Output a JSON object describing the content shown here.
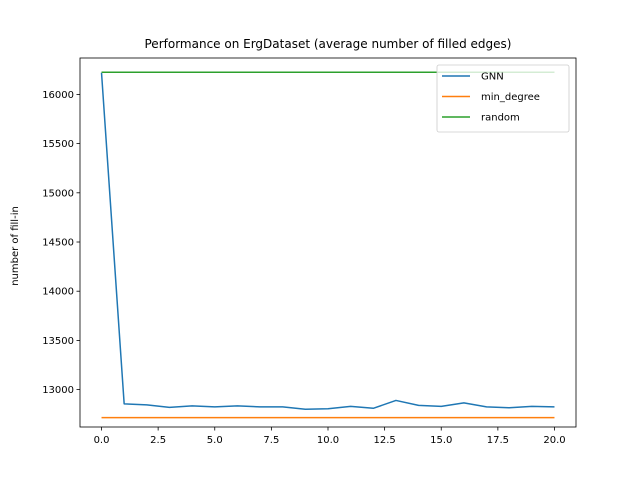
{
  "chart_data": {
    "type": "line",
    "title": "Performance on ErgDataset (average number of filled edges)",
    "xlabel": "",
    "ylabel": "number of fill-in",
    "x": [
      0,
      1,
      2,
      3,
      4,
      5,
      6,
      7,
      8,
      9,
      10,
      11,
      12,
      13,
      14,
      15,
      16,
      17,
      18,
      19,
      20
    ],
    "xlim": [
      -0.95,
      20.95
    ],
    "ylim": [
      12620,
      16370
    ],
    "xticks": [
      "0.0",
      "2.5",
      "5.0",
      "7.5",
      "10.0",
      "12.5",
      "15.0",
      "17.5",
      "20.0"
    ],
    "yticks": [
      "13000",
      "13500",
      "14000",
      "14500",
      "15000",
      "15500",
      "16000"
    ],
    "grid": false,
    "legend_position": "top-right",
    "series": [
      {
        "name": "GNN",
        "color": "#1f77b4",
        "values": [
          16220,
          12855,
          12845,
          12820,
          12835,
          12825,
          12835,
          12825,
          12825,
          12800,
          12805,
          12830,
          12810,
          12890,
          12840,
          12830,
          12865,
          12825,
          12815,
          12830,
          12825
        ]
      },
      {
        "name": "min_degree",
        "color": "#ff7f0e",
        "values": [
          12715,
          12715,
          12715,
          12715,
          12715,
          12715,
          12715,
          12715,
          12715,
          12715,
          12715,
          12715,
          12715,
          12715,
          12715,
          12715,
          12715,
          12715,
          12715,
          12715,
          12715
        ]
      },
      {
        "name": "random",
        "color": "#2ca02c",
        "values": [
          16225,
          16225,
          16225,
          16225,
          16225,
          16225,
          16225,
          16225,
          16225,
          16225,
          16225,
          16225,
          16225,
          16225,
          16225,
          16225,
          16225,
          16225,
          16225,
          16225,
          16225
        ]
      }
    ]
  }
}
